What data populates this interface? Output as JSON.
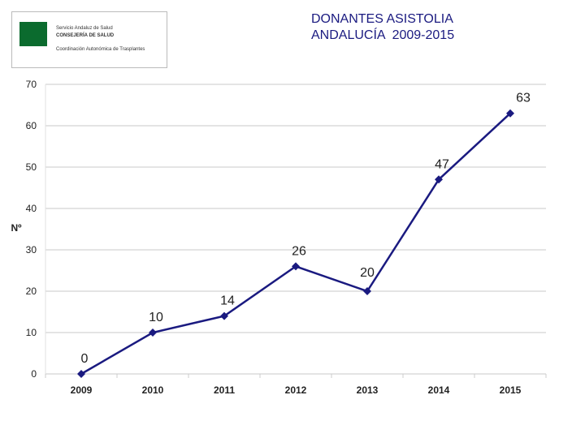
{
  "logo": {
    "line1": "Servicio Andaluz de Salud",
    "line2": "CONSEJERÍA DE SALUD",
    "line3": "Coordinación Autonómica de Trasplantes"
  },
  "title_line1": "DONANTES ASISTOLIA",
  "title_line2": "ANDALUCÍA  2009-2015",
  "colors": {
    "series": "#1a1a80",
    "grid": "#c8c8c8",
    "title": "#1a1a80"
  },
  "chart_data": {
    "type": "line",
    "title": "DONANTES ASISTOLIA ANDALUCÍA 2009-2015",
    "xlabel": "",
    "ylabel": "Nº",
    "categories": [
      "2009",
      "2010",
      "2011",
      "2012",
      "2013",
      "2014",
      "2015"
    ],
    "values": [
      0,
      10,
      14,
      26,
      20,
      47,
      63
    ],
    "ylim": [
      0,
      70
    ],
    "yticks": [
      0,
      10,
      20,
      30,
      40,
      50,
      60,
      70
    ],
    "grid": true,
    "marker": "diamond",
    "data_labels": true
  }
}
